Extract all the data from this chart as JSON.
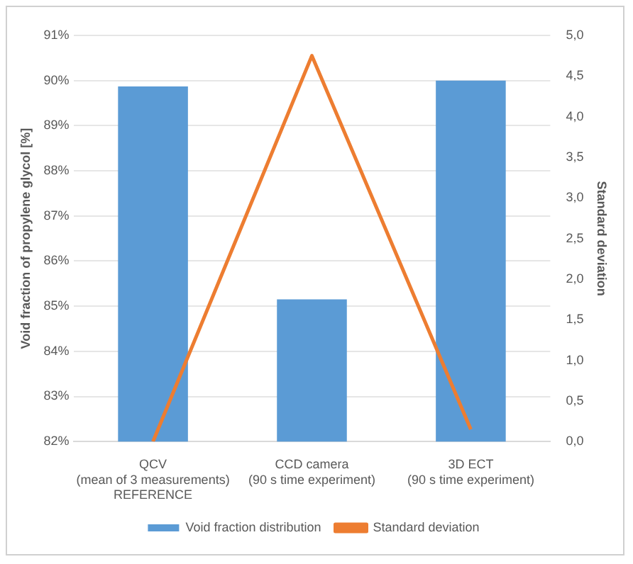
{
  "chart_data": {
    "type": "bar",
    "ylabel": "Void fraction of propylene glycol [%]",
    "y2label": "Standard deviation",
    "categories": [
      "QCV\n(mean of 3 measurements)\nREFERENCE",
      "CCD camera\n(90 s time experiment)",
      "3D ECT\n(90 s time experiment)"
    ],
    "series": [
      {
        "name": "Void fraction distribution",
        "color": "#5b9bd5",
        "values": [
          89.87,
          85.15,
          90.0
        ]
      },
      {
        "name": "Standard deviation",
        "type": "line",
        "axis": "y2",
        "color": "#ed7d31",
        "values": [
          0.0,
          4.75,
          0.15
        ]
      }
    ],
    "ylim": [
      82,
      91
    ],
    "yticks": [
      {
        "value": 82,
        "label": "82%"
      },
      {
        "value": 83,
        "label": "83%"
      },
      {
        "value": 84,
        "label": "84%"
      },
      {
        "value": 85,
        "label": "85%"
      },
      {
        "value": 86,
        "label": "86%"
      },
      {
        "value": 87,
        "label": "87%"
      },
      {
        "value": 88,
        "label": "88%"
      },
      {
        "value": 89,
        "label": "89%"
      },
      {
        "value": 90,
        "label": "90%"
      },
      {
        "value": 91,
        "label": "91%"
      }
    ],
    "y2lim": [
      0,
      5
    ],
    "y2ticks": [
      {
        "value": 0,
        "label": "0,0"
      },
      {
        "value": 0.5,
        "label": "0,5"
      },
      {
        "value": 1,
        "label": "1,0"
      },
      {
        "value": 1.5,
        "label": "1,5"
      },
      {
        "value": 2,
        "label": "2,0"
      },
      {
        "value": 2.5,
        "label": "2,5"
      },
      {
        "value": 3,
        "label": "3,0"
      },
      {
        "value": 3.5,
        "label": "3,5"
      },
      {
        "value": 4,
        "label": "4,0"
      },
      {
        "value": 4.5,
        "label": "4,5"
      },
      {
        "value": 5,
        "label": "5,0"
      }
    ],
    "grid": "y",
    "legend": "bottom",
    "marker": "none"
  }
}
